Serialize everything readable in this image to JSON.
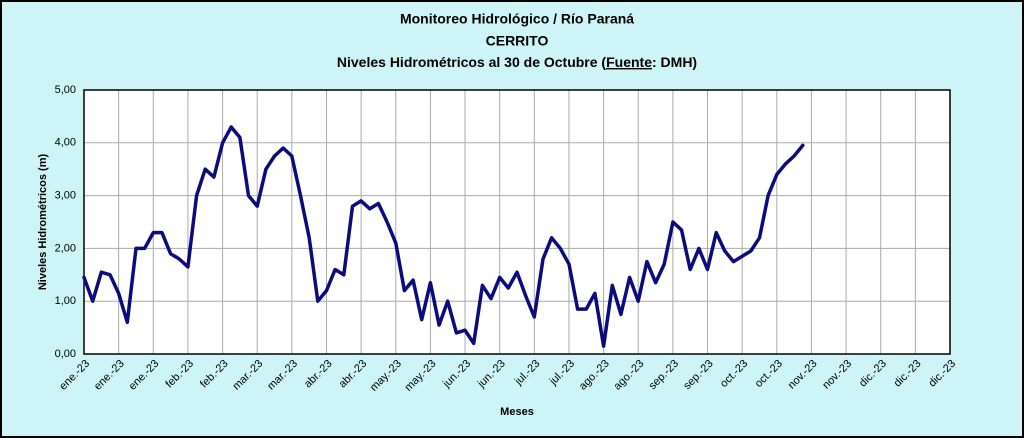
{
  "chart_data": {
    "type": "line",
    "title": "Monitoreo Hidrológico / Río Paraná",
    "subtitle": "CERRITO",
    "caption_parts": [
      "Niveles Hidrométricos al 30 de Octubre (",
      "Fuente",
      ": DMH)"
    ],
    "x_label": "Meses",
    "y_label": "Niveles Hidrométricos (m)",
    "x_labels": [
      "ene.-23",
      "ene.-23",
      "ene.-23",
      "feb.-23",
      "feb.-23",
      "mar.-23",
      "mar.-23",
      "abr.-23",
      "abr.-23",
      "may.-23",
      "may.-23",
      "jun.-23",
      "jun.-23",
      "jul.-23",
      "jul.-23",
      "ago.-23",
      "ago.-23",
      "sep.-23",
      "sep.-23",
      "oct.-23",
      "oct.-23",
      "nov.-23",
      "nov.-23",
      "dic.-23",
      "dic.-23",
      "dic.-23"
    ],
    "series": [
      {
        "name": "CERRITO",
        "color": "#0b0b7e",
        "values": [
          1.45,
          1.0,
          1.55,
          1.5,
          1.15,
          0.6,
          2.0,
          2.0,
          2.3,
          2.3,
          1.9,
          1.8,
          1.65,
          3.0,
          3.5,
          3.35,
          4.0,
          4.3,
          4.1,
          3.0,
          2.8,
          3.5,
          3.75,
          3.9,
          3.75,
          3.0,
          2.2,
          1.0,
          1.2,
          1.6,
          1.5,
          2.8,
          2.9,
          2.75,
          2.85,
          2.5,
          2.1,
          1.2,
          1.4,
          0.65,
          1.35,
          0.55,
          1.0,
          0.4,
          0.45,
          0.2,
          1.3,
          1.05,
          1.45,
          1.25,
          1.55,
          1.1,
          0.7,
          1.8,
          2.2,
          2.0,
          1.7,
          0.85,
          0.85,
          1.15,
          0.15,
          1.3,
          0.75,
          1.45,
          1.0,
          1.75,
          1.35,
          1.7,
          2.5,
          2.35,
          1.6,
          2.0,
          1.6,
          2.3,
          1.95,
          1.75,
          1.85,
          1.95,
          2.2,
          3.0,
          3.4,
          3.6,
          3.75,
          3.95
        ]
      }
    ],
    "ylim": [
      0,
      5
    ],
    "yticks": [
      {
        "value": 0,
        "label": "0,00"
      },
      {
        "value": 1,
        "label": "1,00"
      },
      {
        "value": 2,
        "label": "2,00"
      },
      {
        "value": 3,
        "label": "3,00"
      },
      {
        "value": 4,
        "label": "4,00"
      },
      {
        "value": 5,
        "label": "5,00"
      }
    ],
    "grid": true,
    "background": "#cdf4f7"
  }
}
